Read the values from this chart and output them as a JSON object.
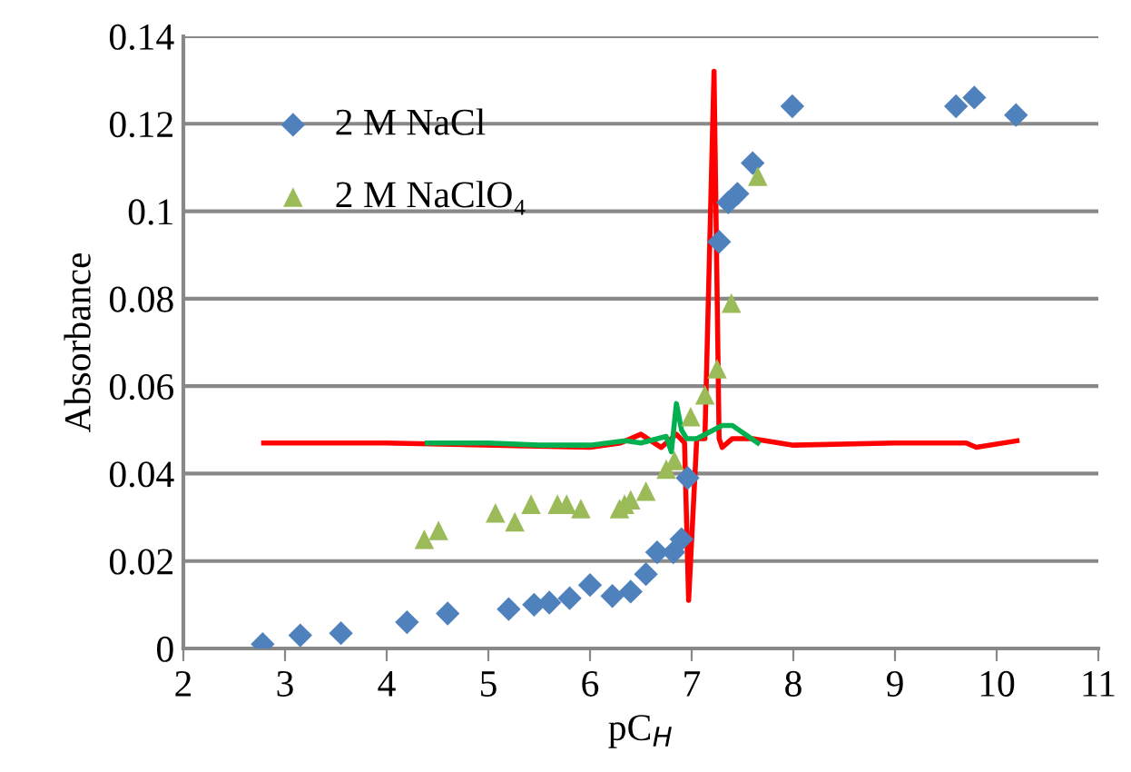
{
  "chart_data": {
    "type": "scatter",
    "xlabel": "pC$_{H}$",
    "ylabel": "Absorbance",
    "xlim": [
      2,
      11
    ],
    "ylim": [
      0,
      0.14
    ],
    "xticks": [
      2,
      3,
      4,
      5,
      6,
      7,
      8,
      9,
      10,
      11
    ],
    "yticks": [
      0,
      0.02,
      0.04,
      0.06,
      0.08,
      0.1,
      0.12,
      0.14
    ],
    "grid": "y",
    "legend": "top left",
    "series": [
      {
        "name": "2 M NaCl",
        "color": "#4f81bd",
        "marker": "diamond",
        "x": [
          2.78,
          3.15,
          3.55,
          4.2,
          4.6,
          5.2,
          5.45,
          5.6,
          5.8,
          6.0,
          6.22,
          6.4,
          6.55,
          6.66,
          6.82,
          6.9,
          6.96,
          7.27,
          7.36,
          7.45,
          7.6,
          7.99,
          9.6,
          9.78,
          10.19
        ],
        "values": [
          0.001,
          0.003,
          0.0035,
          0.006,
          0.008,
          0.009,
          0.01,
          0.0105,
          0.0115,
          0.0145,
          0.012,
          0.013,
          0.017,
          0.022,
          0.022,
          0.025,
          0.039,
          0.093,
          0.102,
          0.104,
          0.111,
          0.124,
          0.124,
          0.126,
          0.122
        ]
      },
      {
        "name": "2 M NaClO₄",
        "color": "#9bbb59",
        "marker": "triangle",
        "x": [
          4.37,
          4.51,
          5.07,
          5.26,
          5.42,
          5.68,
          5.77,
          5.91,
          6.29,
          6.34,
          6.4,
          6.55,
          6.75,
          6.83,
          6.99,
          7.13,
          7.25,
          7.39,
          7.65
        ],
        "values": [
          0.025,
          0.027,
          0.031,
          0.029,
          0.033,
          0.033,
          0.033,
          0.032,
          0.032,
          0.033,
          0.034,
          0.036,
          0.041,
          0.043,
          0.053,
          0.058,
          0.064,
          0.079,
          0.108
        ]
      },
      {
        "type": "line",
        "color": "#ff0000",
        "marker": "none",
        "x": [
          2.79,
          4,
          6,
          6.3,
          6.5,
          6.7,
          6.85,
          6.93,
          6.97,
          7.05,
          7.13,
          7.22,
          7.27,
          7.3,
          7.4,
          7.6,
          8,
          9,
          9.7,
          9.8,
          10.2
        ],
        "values": [
          0.047,
          0.047,
          0.046,
          0.047,
          0.049,
          0.046,
          0.049,
          0.047,
          0.011,
          0.048,
          0.048,
          0.132,
          0.048,
          0.046,
          0.048,
          0.048,
          0.0465,
          0.047,
          0.047,
          0.046,
          0.0475
        ]
      },
      {
        "type": "line",
        "color": "#00b050",
        "marker": "none",
        "x": [
          4.4,
          5,
          5.5,
          6,
          6.35,
          6.5,
          6.75,
          6.8,
          6.85,
          6.9,
          6.95,
          7.05,
          7.3,
          7.4,
          7.65
        ],
        "values": [
          0.047,
          0.047,
          0.0465,
          0.0465,
          0.0475,
          0.047,
          0.0485,
          0.045,
          0.056,
          0.05,
          0.048,
          0.048,
          0.051,
          0.051,
          0.047
        ]
      }
    ]
  }
}
